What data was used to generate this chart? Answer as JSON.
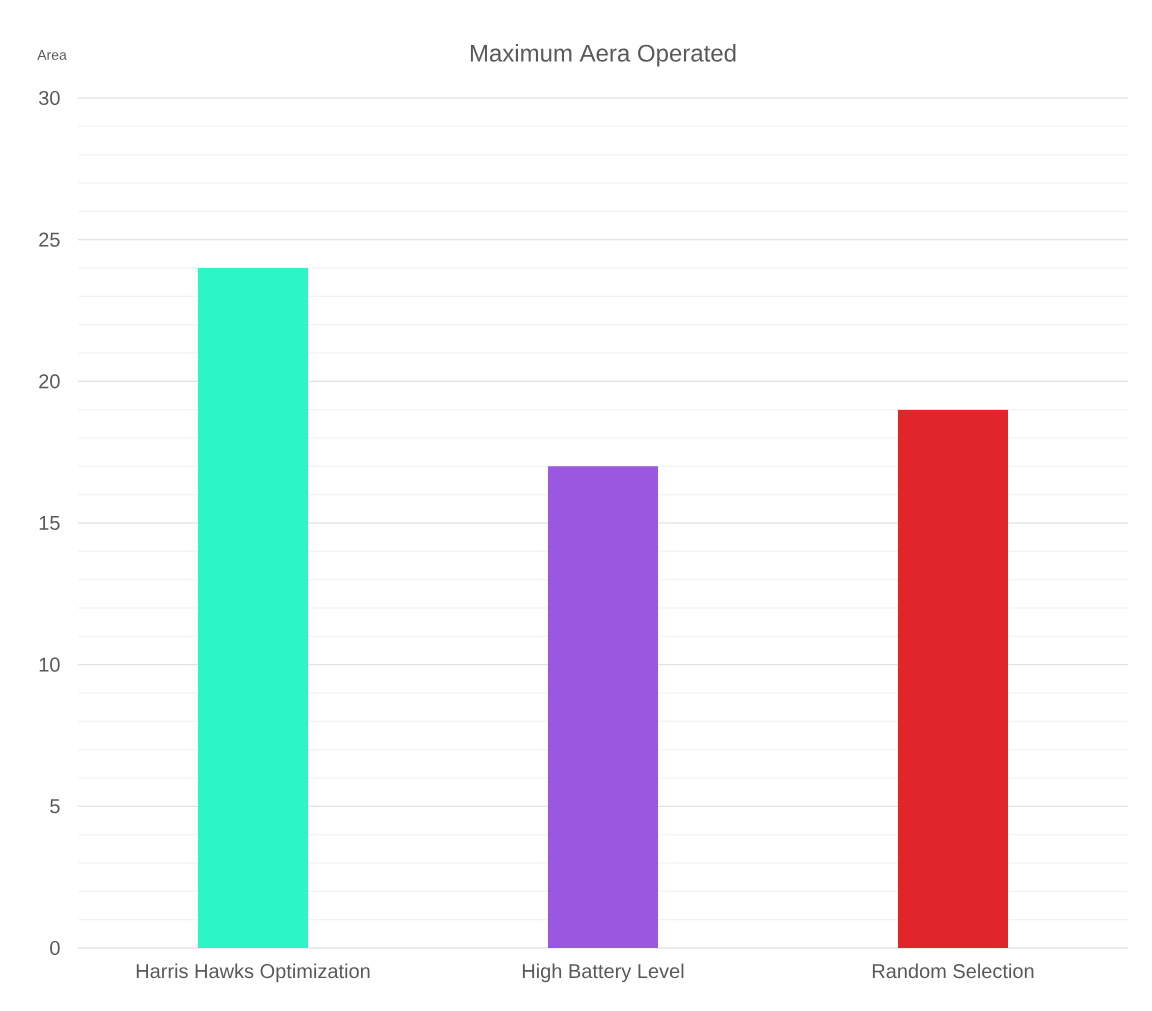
{
  "chart_data": {
    "type": "bar",
    "title": "Maximum Aera Operated",
    "ylabel": "Area",
    "categories": [
      "Harris Hawks Optimization",
      "High Battery Level",
      "Random Selection"
    ],
    "values": [
      24,
      17,
      19
    ],
    "colors": [
      "#2cf5c6",
      "#9a57e0",
      "#e0252b"
    ],
    "ylim": [
      0,
      30
    ],
    "yticks": [
      0,
      {
        "value": 1,
        "label": null
      },
      {
        "value": 2,
        "label": null
      },
      {
        "value": 3,
        "label": null
      },
      {
        "value": 4,
        "label": null
      },
      5,
      {
        "value": 6,
        "label": null
      },
      {
        "value": 7,
        "label": null
      },
      {
        "value": 8,
        "label": null
      },
      {
        "value": 9,
        "label": null
      },
      10,
      {
        "value": 11,
        "label": null
      },
      {
        "value": 12,
        "label": null
      },
      {
        "value": 13,
        "label": null
      },
      {
        "value": 14,
        "label": null
      },
      15,
      {
        "value": 16,
        "label": null
      },
      {
        "value": 17,
        "label": null
      },
      {
        "value": 18,
        "label": null
      },
      {
        "value": 19,
        "label": null
      },
      20,
      {
        "value": 21,
        "label": null
      },
      {
        "value": 22,
        "label": null
      },
      {
        "value": 23,
        "label": null
      },
      {
        "value": 24,
        "label": null
      },
      25,
      {
        "value": 26,
        "label": null
      },
      {
        "value": 27,
        "label": null
      },
      {
        "value": 28,
        "label": null
      },
      {
        "value": 29,
        "label": null
      },
      30
    ],
    "grid": "y"
  }
}
